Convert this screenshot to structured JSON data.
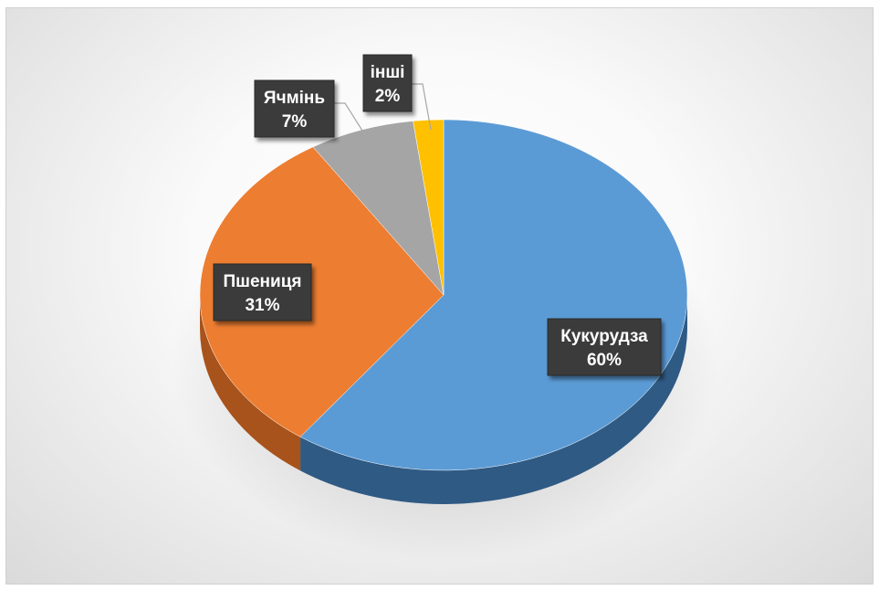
{
  "chart_data": {
    "type": "pie",
    "style": "3d",
    "title": "",
    "slices": [
      {
        "label": "Кукурудза",
        "value": 60,
        "display": "60%",
        "color": "#5b9bd5",
        "side": "#2f5a84"
      },
      {
        "label": "Пшениця",
        "value": 31,
        "display": "31%",
        "color": "#ed7d31",
        "side": "#a8531b"
      },
      {
        "label": "Ячмінь",
        "value": 7,
        "display": "7%",
        "color": "#a5a5a5",
        "side": "#707070"
      },
      {
        "label": "інші",
        "value": 2,
        "display": "2%",
        "color": "#ffc000",
        "side": "#b88a00"
      }
    ],
    "start_angle_deg": 0,
    "direction": "clockwise",
    "data_labels": "category and percentage",
    "legend": "none"
  }
}
